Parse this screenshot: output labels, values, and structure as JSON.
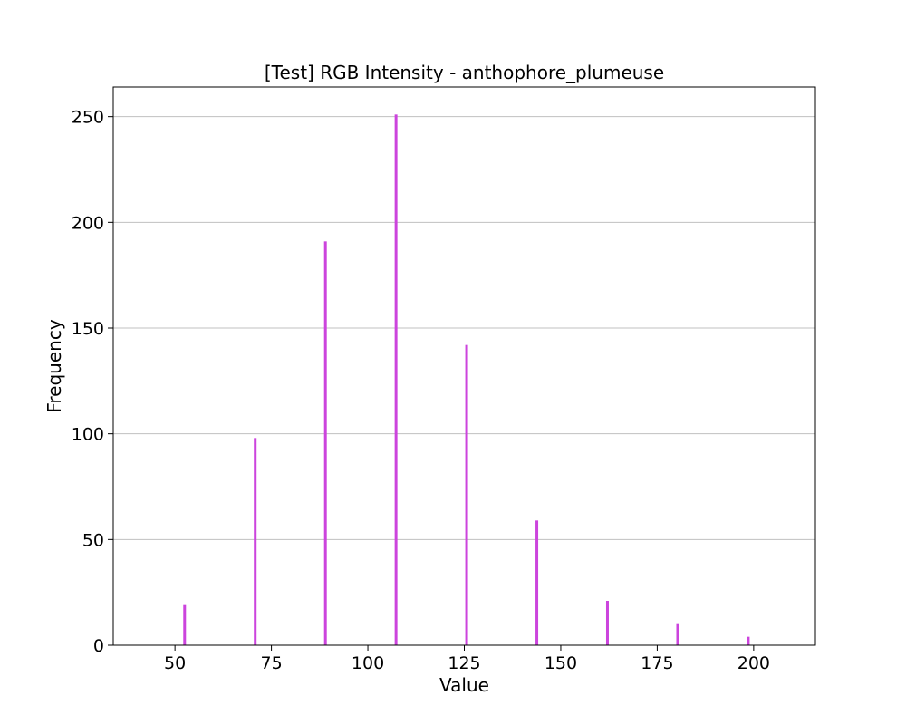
{
  "chart_data": {
    "type": "bar",
    "title": "[Test] RGB Intensity - anthophore_plumeuse",
    "xlabel": "Value",
    "ylabel": "Frequency",
    "xlim": [
      34,
      216
    ],
    "ylim": [
      0,
      264
    ],
    "x_ticks": [
      50,
      75,
      100,
      125,
      150,
      175,
      200
    ],
    "y_ticks": [
      0,
      50,
      100,
      150,
      200,
      250
    ],
    "grid": "y-only",
    "bar_color": "#cc44dd",
    "x": [
      52.5,
      70.8,
      89.0,
      107.3,
      125.6,
      143.8,
      162.1,
      180.3,
      198.6
    ],
    "values": [
      19,
      98,
      191,
      251,
      142,
      59,
      21,
      10,
      4
    ]
  }
}
